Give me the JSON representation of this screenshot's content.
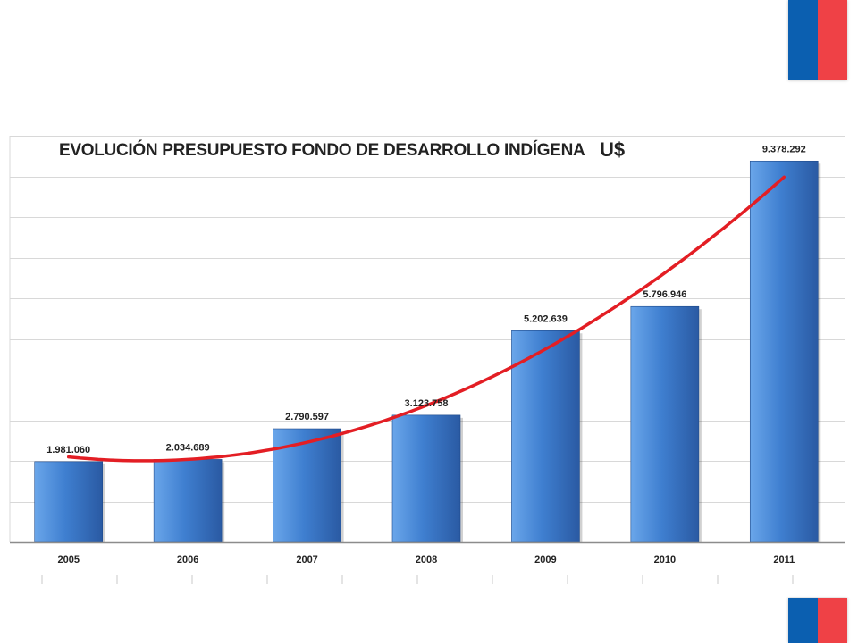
{
  "colors": {
    "flag_blue": "#0b5fb0",
    "flag_red": "#ef4146",
    "bar_light": "#6aa6ea",
    "bar_mid": "#3f7fd0",
    "bar_dark": "#2a5aa3",
    "trend": "#e31e24",
    "grid": "#d8d8d8",
    "axis": "#8c8c8c"
  },
  "logo_icon": "chile-flag-icon",
  "chart_data": {
    "type": "bar",
    "title": "EVOLUCIÓN PRESUPUESTO FONDO DE DESARROLLO INDÍGENA",
    "unit": "U$",
    "categories": [
      "2005",
      "2006",
      "2007",
      "2008",
      "2009",
      "2010",
      "2011"
    ],
    "values": [
      1981060,
      2034689,
      2790597,
      3123758,
      5202639,
      5796946,
      9378292
    ],
    "value_labels": [
      "1.981.060",
      "2.034.689",
      "2.790.597",
      "3.123.758",
      "5.202.639",
      "5.796.946",
      "9.378.292"
    ],
    "ylim": [
      0,
      10000000
    ],
    "y_step": 1000000,
    "grid": true,
    "legend": "none",
    "trendline": true
  }
}
